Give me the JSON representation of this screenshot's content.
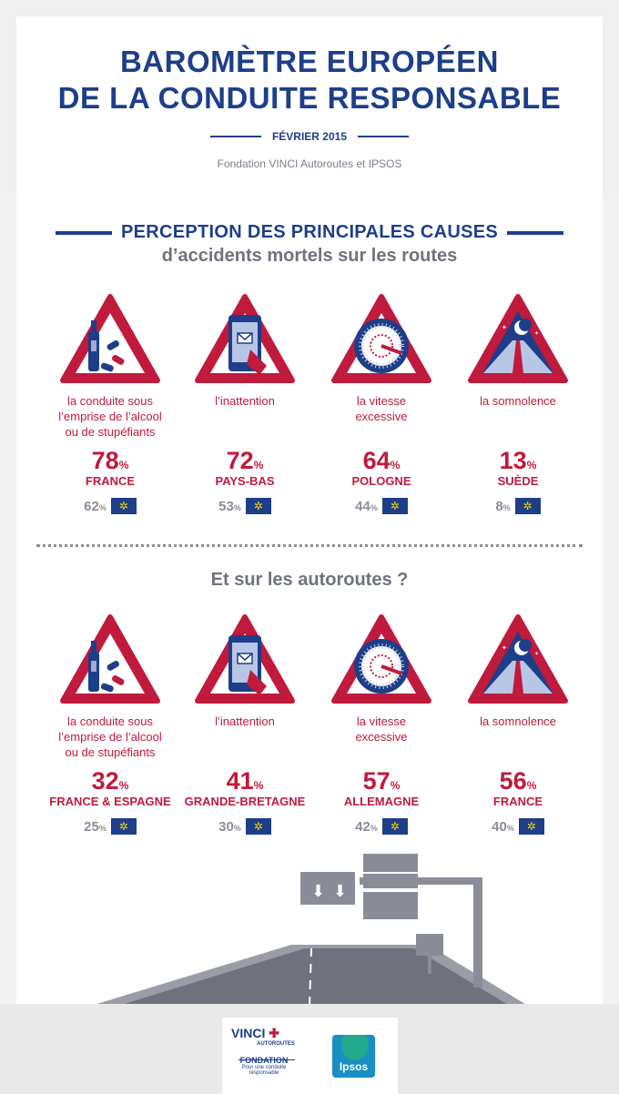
{
  "header": {
    "title_line1": "BAROMÈTRE EUROPÉEN",
    "title_line2": "DE LA CONDUITE RESPONSABLE",
    "date": "FÉVRIER 2015",
    "subtitle": "Fondation VINCI Autoroutes et IPSOS"
  },
  "section1": {
    "title": "PERCEPTION DES PRINCIPALES CAUSES",
    "subtitle": "d’accidents mortels sur les routes",
    "items": [
      {
        "icon": "alcohol-drugs-icon",
        "label": [
          "la conduite sous",
          "l’emprise de l’alcool",
          "ou de stupéfiants"
        ],
        "value": "78",
        "country": "FRANCE",
        "eu_value": "62"
      },
      {
        "icon": "phone-distraction-icon",
        "label": [
          "l’inattention"
        ],
        "value": "72",
        "country": "PAYS-BAS",
        "eu_value": "53"
      },
      {
        "icon": "speedometer-icon",
        "label": [
          "la vitesse",
          "excessive"
        ],
        "value": "64",
        "country": "POLOGNE",
        "eu_value": "44"
      },
      {
        "icon": "night-road-icon",
        "label": [
          "la somnolence"
        ],
        "value": "13",
        "country": "SUÈDE",
        "eu_value": "8"
      }
    ]
  },
  "section2": {
    "title": "Et sur les autoroutes ?",
    "items": [
      {
        "icon": "alcohol-drugs-icon",
        "label": [
          "la conduite sous",
          "l’emprise de l’alcool",
          "ou de stupéfiants"
        ],
        "value": "32",
        "country": "FRANCE & ESPAGNE",
        "eu_value": "25"
      },
      {
        "icon": "phone-distraction-icon",
        "label": [
          "l’inattention"
        ],
        "value": "41",
        "country": "GRANDE-BRETAGNE",
        "eu_value": "30"
      },
      {
        "icon": "speedometer-icon",
        "label": [
          "la vitesse",
          "excessive"
        ],
        "value": "57",
        "country": "ALLEMAGNE",
        "eu_value": "42"
      },
      {
        "icon": "night-road-icon",
        "label": [
          "la somnolence"
        ],
        "value": "56",
        "country": "FRANCE",
        "eu_value": "40"
      }
    ]
  },
  "percent_sign": "%",
  "colors": {
    "blue": "#1d3f8a",
    "red": "#c01a3c",
    "grey": "#8a8f99"
  },
  "footer": {
    "vinci": "VINCI",
    "autoroutes": "AUTOROUTES",
    "fondation": "FONDATION",
    "tagline": "Pour une conduite responsable",
    "ipsos": "Ipsos"
  }
}
